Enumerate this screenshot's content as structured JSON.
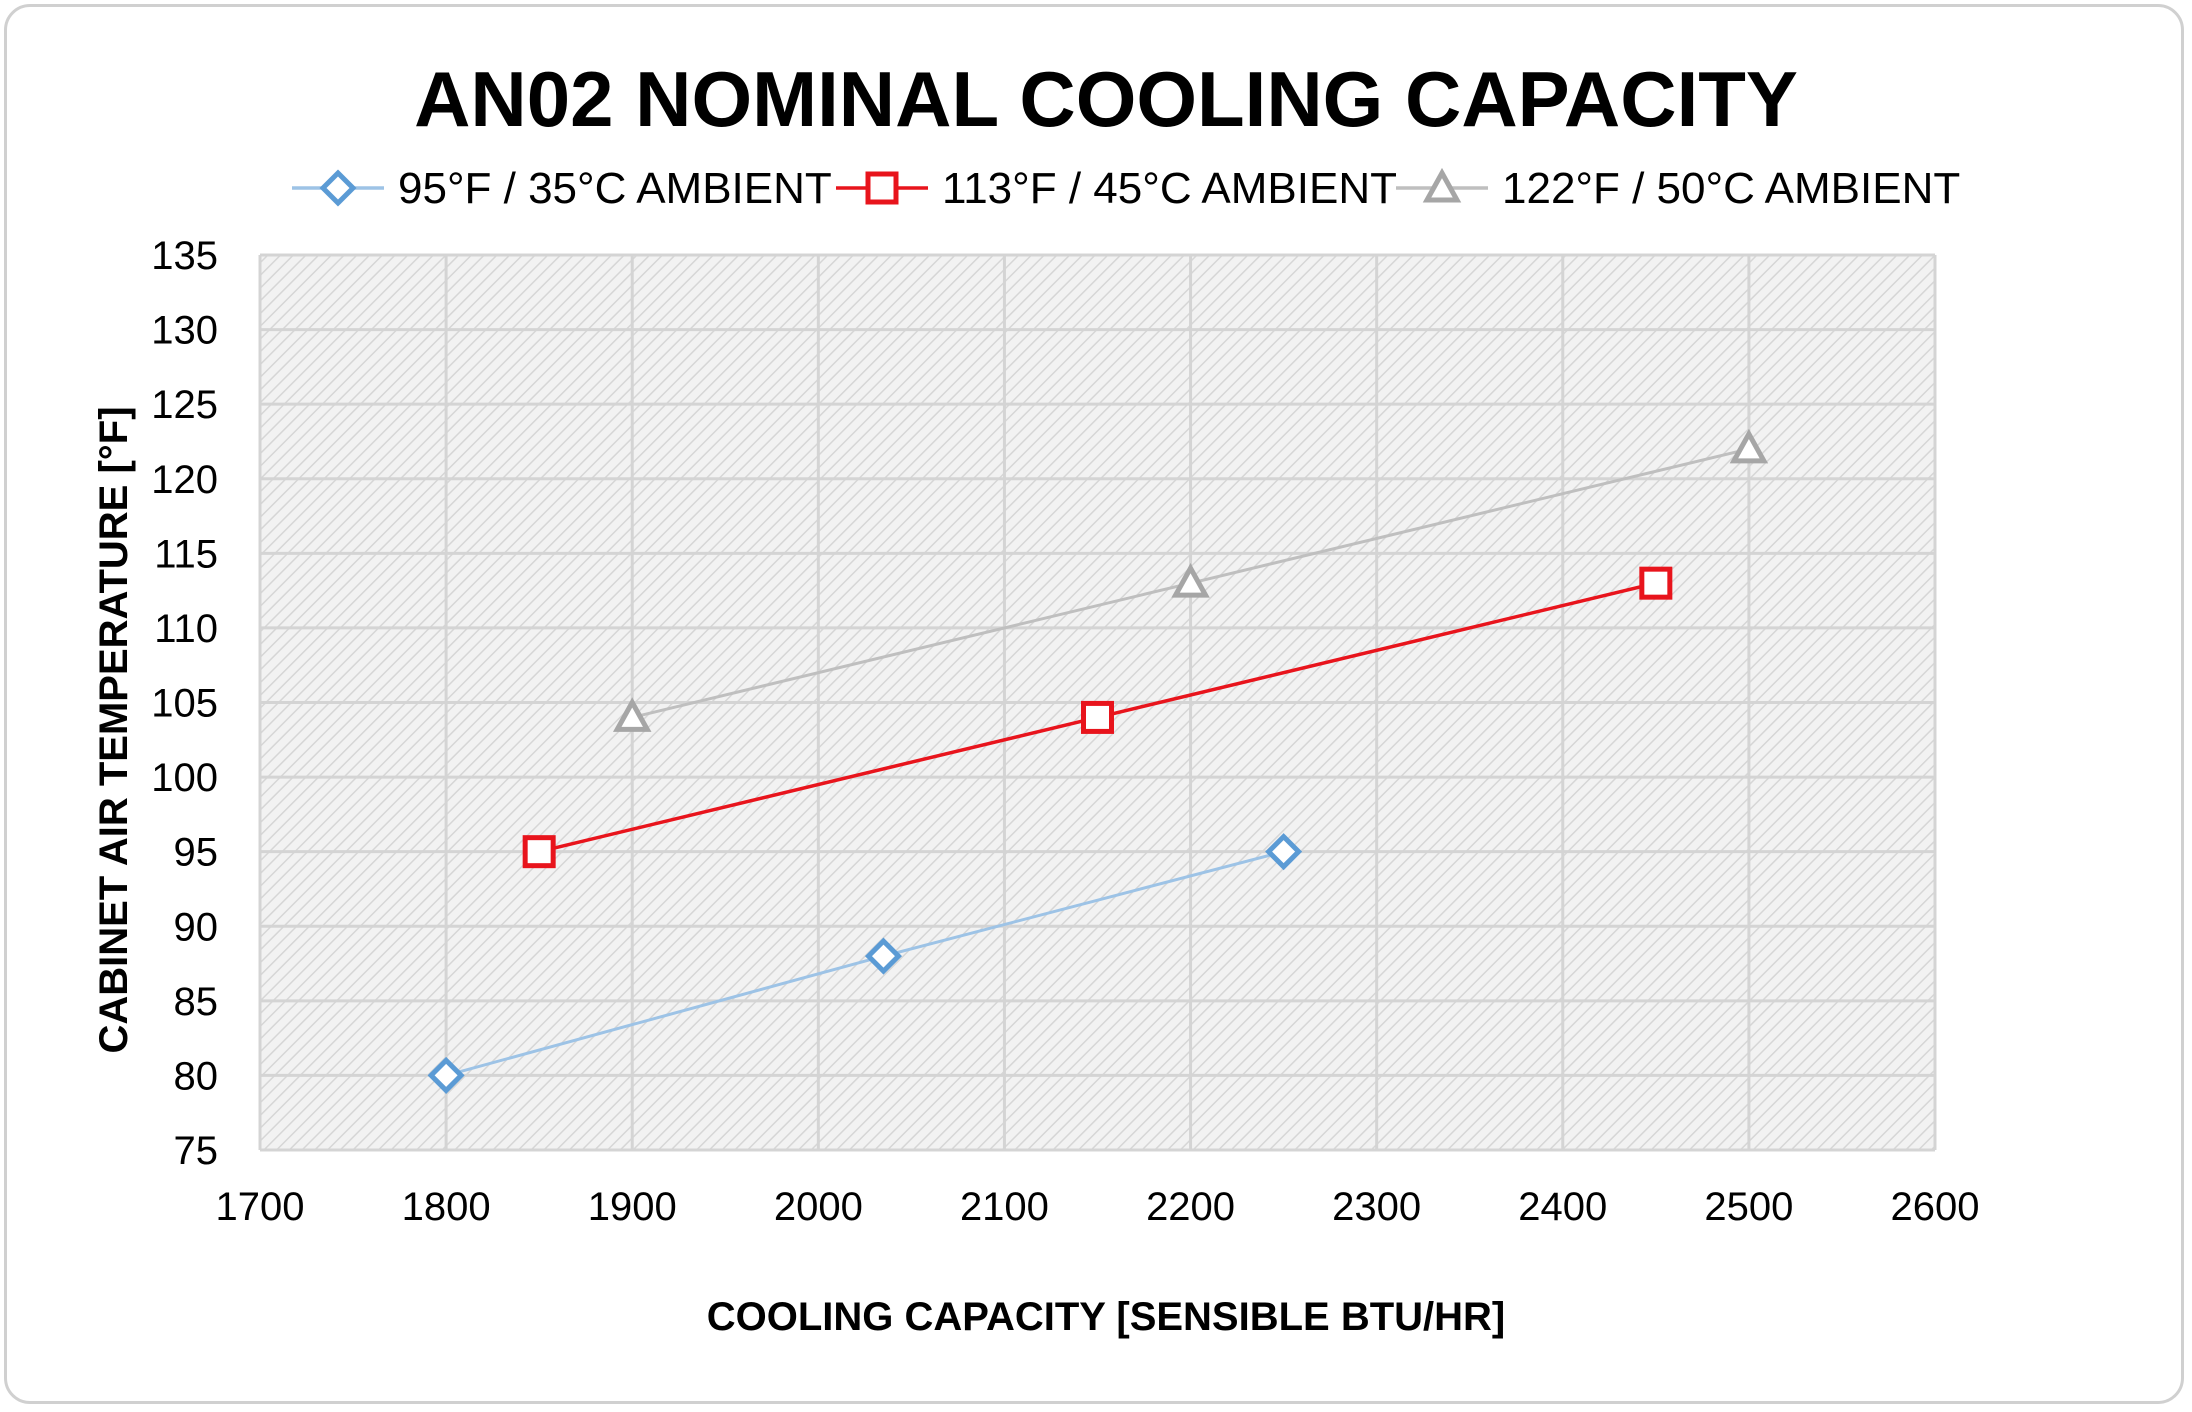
{
  "chart_data": {
    "type": "line",
    "title": "AN02 NOMINAL COOLING CAPACITY",
    "xlabel": "COOLING CAPACITY [SENSIBLE BTU/HR]",
    "ylabel": "CABINET AIR TEMPERATURE  [°F]",
    "xlim": [
      1700,
      2600
    ],
    "ylim": [
      75,
      135
    ],
    "x_ticks": [
      1700,
      1800,
      1900,
      2000,
      2100,
      2200,
      2300,
      2400,
      2500,
      2600
    ],
    "y_ticks": [
      75,
      80,
      85,
      90,
      95,
      100,
      105,
      110,
      115,
      120,
      125,
      130,
      135
    ],
    "grid": true,
    "legend_position": "top",
    "series": [
      {
        "name": "95°F / 35°C AMBIENT",
        "marker": "diamond",
        "color": "#5b9bd5",
        "line_color": "#9dc3e6",
        "points": [
          [
            1800,
            80
          ],
          [
            2035,
            88
          ],
          [
            2250,
            95
          ]
        ]
      },
      {
        "name": "113°F / 45°C AMBIENT",
        "marker": "square",
        "color": "#e8141c",
        "line_color": "#e8141c",
        "points": [
          [
            1850,
            95
          ],
          [
            2150,
            104
          ],
          [
            2450,
            113
          ]
        ]
      },
      {
        "name": "122°F / 50°C AMBIENT",
        "marker": "triangle",
        "color": "#a6a6a6",
        "line_color": "#bfbfbf",
        "points": [
          [
            1900,
            104
          ],
          [
            2200,
            113
          ],
          [
            2500,
            122
          ]
        ]
      }
    ]
  }
}
